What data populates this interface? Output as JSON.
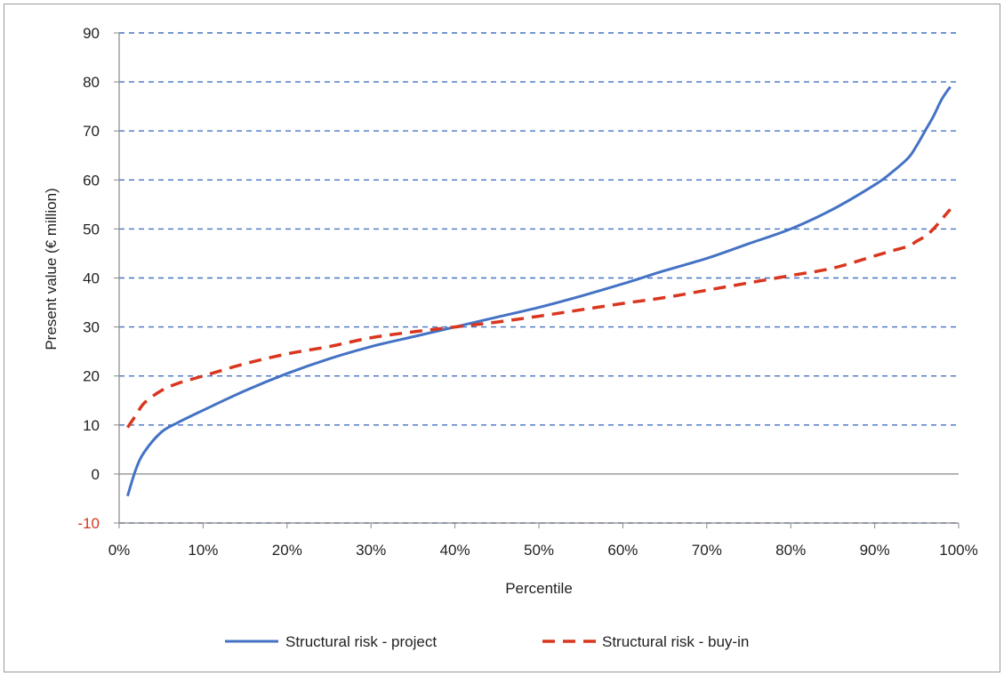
{
  "chart_data": {
    "type": "line",
    "xlabel": "Percentile",
    "ylabel": "Present value (€ million)",
    "xlim": [
      0,
      100
    ],
    "ylim": [
      -10,
      90
    ],
    "x_ticks": [
      "0%",
      "10%",
      "20%",
      "30%",
      "40%",
      "50%",
      "60%",
      "70%",
      "80%",
      "90%",
      "100%"
    ],
    "y_ticks": [
      "90",
      "80",
      "70",
      "60",
      "50",
      "40",
      "30",
      "20",
      "10",
      "0",
      "-10"
    ],
    "y_tick_values": [
      90,
      80,
      70,
      60,
      50,
      40,
      30,
      20,
      10,
      0,
      -10
    ],
    "grid": "horizontal dashed",
    "legend_position": "bottom",
    "x": [
      1,
      2,
      3,
      5,
      7,
      10,
      15,
      20,
      25,
      30,
      35,
      40,
      45,
      50,
      55,
      60,
      65,
      70,
      75,
      80,
      85,
      90,
      92,
      94,
      95,
      96,
      97,
      98,
      99
    ],
    "series": [
      {
        "name": "Structural risk - project",
        "color": "#4472c4",
        "style": "solid",
        "values": [
          -4.5,
          1,
          4.5,
          8.5,
          10.5,
          13,
          17,
          20.5,
          23.5,
          26,
          28,
          30,
          32,
          34,
          36.3,
          38.8,
          41.5,
          44,
          47,
          50,
          54,
          59,
          61.5,
          64.5,
          67,
          70,
          73,
          76.5,
          79
        ]
      },
      {
        "name": "Structural risk - buy-in",
        "color": "#d9361f",
        "style": "dashed",
        "values": [
          9.5,
          12,
          14.5,
          17,
          18.5,
          20,
          22.5,
          24.5,
          26,
          27.8,
          29,
          30,
          31,
          32.2,
          33.5,
          34.8,
          36,
          37.5,
          39,
          40.5,
          42,
          44.5,
          45.5,
          46.5,
          47.5,
          48.5,
          50,
          52,
          54
        ]
      }
    ]
  }
}
